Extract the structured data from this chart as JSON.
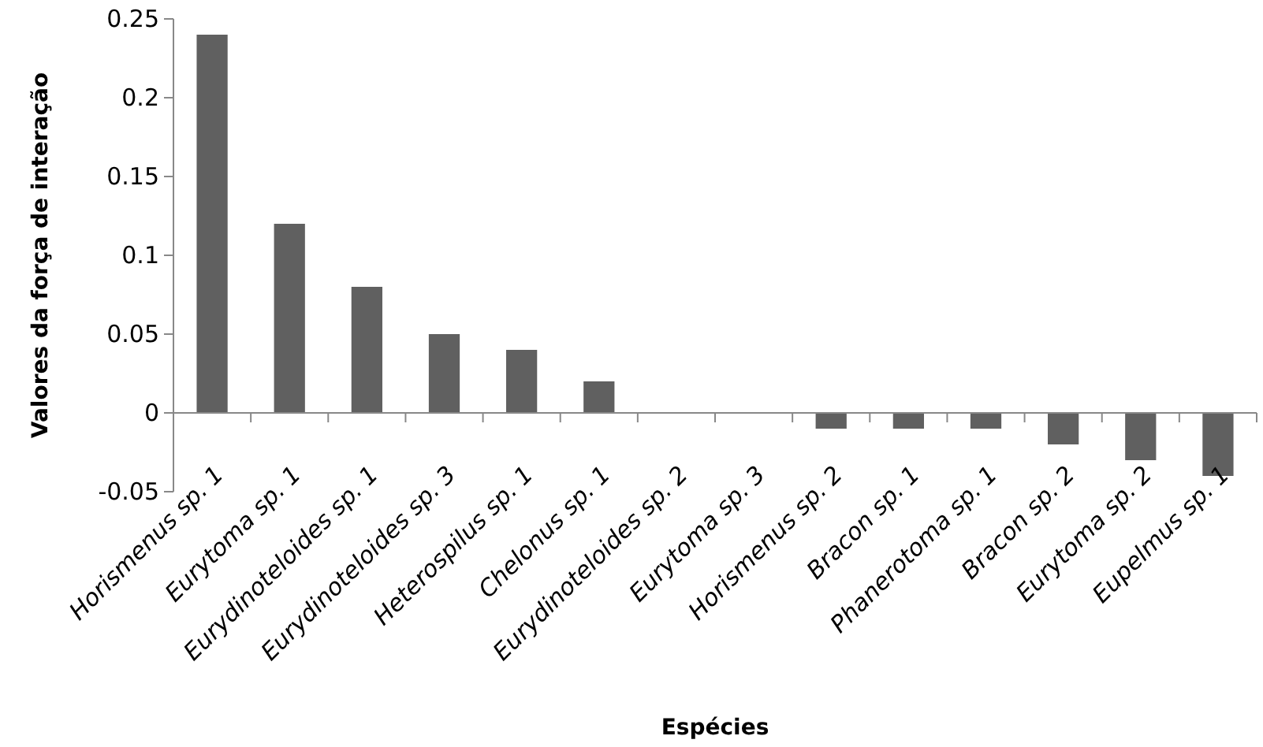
{
  "chart_data": {
    "type": "bar",
    "xlabel": "Espécies",
    "ylabel": "Valores da força de interação",
    "categories": [
      "Horismenus sp. 1",
      "Eurytoma sp. 1",
      "Eurydinoteloides sp. 1",
      "Eurydinoteloides sp. 3",
      "Heterospilus sp. 1",
      "Chelonus sp. 1",
      "Eurydinoteloides sp. 2",
      "Eurytoma sp. 3",
      "Horismenus sp. 2",
      "Bracon sp. 1",
      "Phanerotoma sp. 1",
      "Bracon sp. 2",
      "Eurytoma sp. 2",
      "Eupelmus sp. 1"
    ],
    "values": [
      0.24,
      0.12,
      0.08,
      0.05,
      0.04,
      0.02,
      0,
      0,
      -0.01,
      -0.01,
      -0.01,
      -0.02,
      -0.03,
      -0.04
    ],
    "color": "#606060",
    "ylim": [
      -0.05,
      0.25
    ],
    "yticks": [
      -0.05,
      0,
      0.05,
      0.1,
      0.15,
      0.2,
      0.25
    ],
    "grid": false
  }
}
